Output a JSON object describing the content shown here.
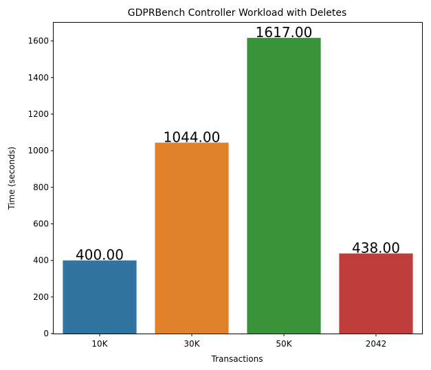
{
  "chart_data": {
    "type": "bar",
    "title": "GDPRBench Controller Workload with Deletes",
    "xlabel": "Transactions",
    "ylabel": "Time (seconds)",
    "categories": [
      "10K",
      "30K",
      "50K",
      "2042"
    ],
    "values": [
      400,
      1044,
      1617,
      438
    ],
    "data_labels": [
      "400.00",
      "1044.00",
      "1617.00",
      "438.00"
    ],
    "colors": [
      "#3274a1",
      "#e1812c",
      "#3a923a",
      "#c03d3e"
    ],
    "ylim": [
      0,
      1700
    ],
    "yticks": [
      0,
      200,
      400,
      600,
      800,
      1000,
      1200,
      1400,
      1600
    ],
    "grid": false,
    "legend": "none"
  }
}
